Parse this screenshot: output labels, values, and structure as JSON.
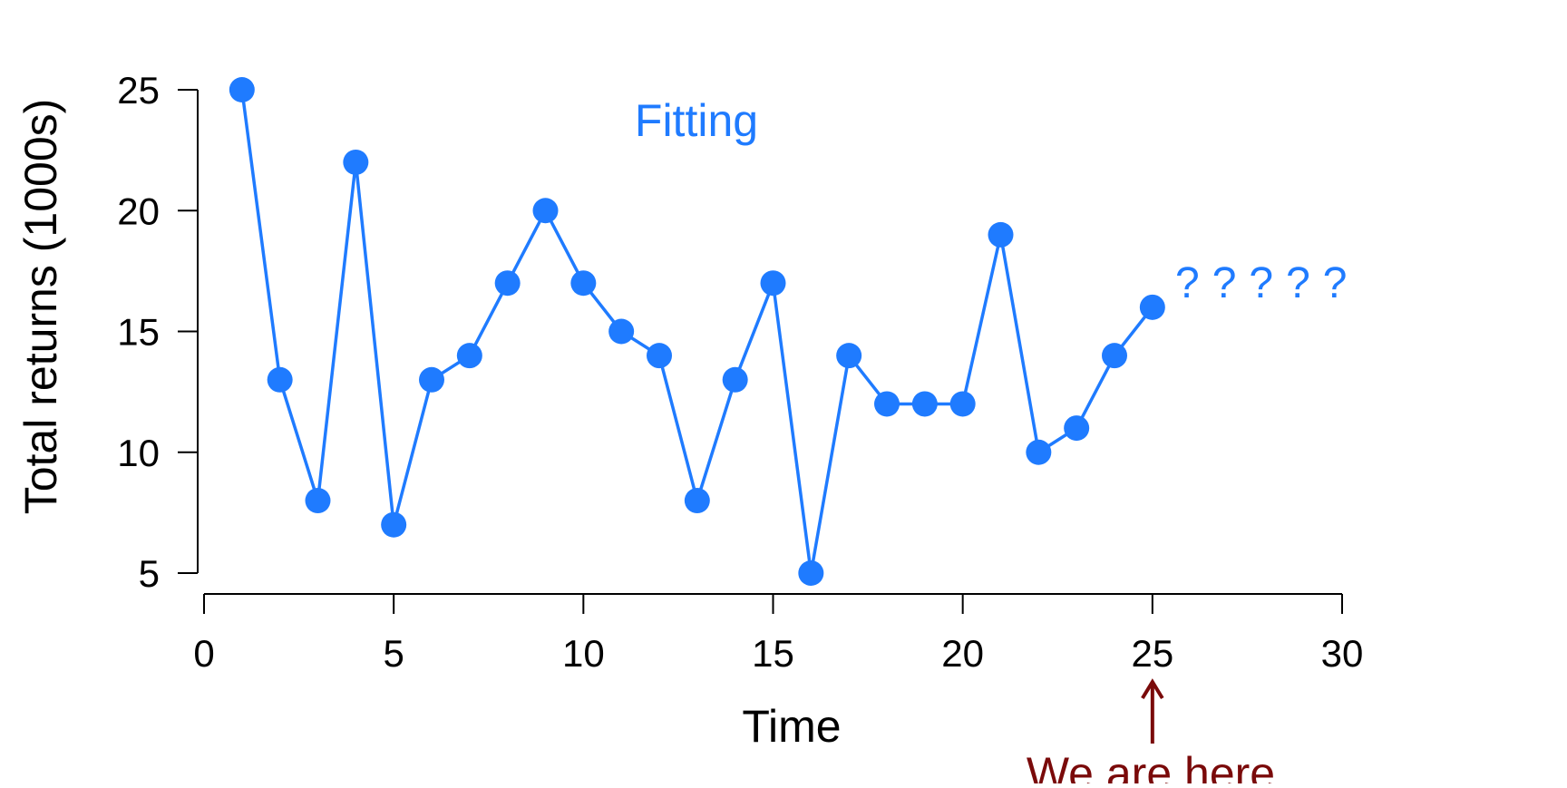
{
  "chart_data": {
    "type": "line",
    "title": "",
    "xlabel": "Time",
    "ylabel": "Total returns (1000s)",
    "x": [
      1,
      2,
      3,
      4,
      5,
      6,
      7,
      8,
      9,
      10,
      11,
      12,
      13,
      14,
      15,
      16,
      17,
      18,
      19,
      20,
      21,
      22,
      23,
      24,
      25
    ],
    "series": [
      {
        "values": [
          25,
          13,
          8,
          22,
          7,
          13,
          14,
          17,
          20,
          17,
          15,
          14,
          8,
          13,
          17,
          5,
          14,
          12,
          12,
          12,
          19,
          10,
          11,
          14,
          16
        ]
      }
    ],
    "xlim": [
      0,
      30
    ],
    "ylim": [
      5,
      25
    ],
    "xticks": [
      0,
      5,
      10,
      15,
      20,
      25,
      30
    ],
    "yticks": [
      5,
      10,
      15,
      20,
      25
    ],
    "grid": false,
    "annotations": {
      "fitting_label": "Fitting",
      "question_marks": "?????",
      "here_label": "We are here",
      "here_x": 25
    },
    "colors": {
      "series": "#1f7bff",
      "annotation_here": "#7a0a0a",
      "axis": "#000000"
    }
  }
}
